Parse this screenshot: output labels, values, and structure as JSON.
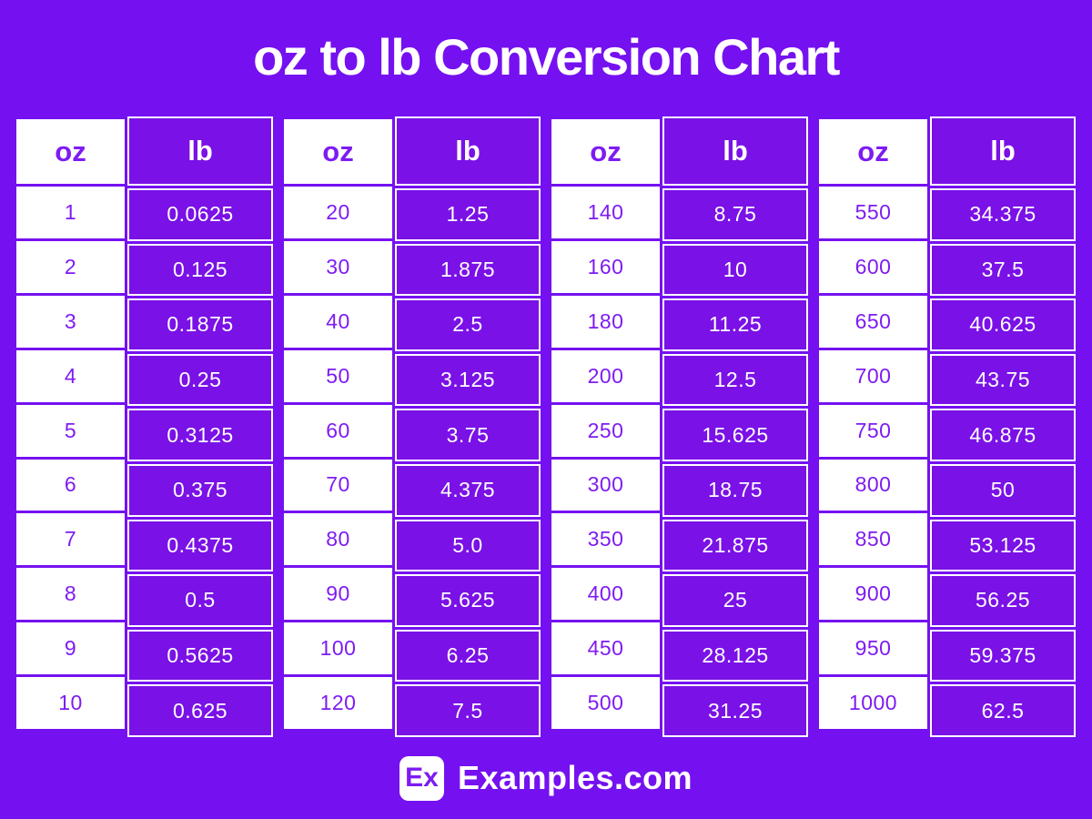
{
  "colors": {
    "background": "#7511F0",
    "cell_purple": "#7A11E6",
    "accent_text": "#7E1BF2",
    "white": "#FFFFFF"
  },
  "chart_data": {
    "type": "table",
    "title": "oz to lb Conversion Chart",
    "columns": [
      "oz",
      "lb"
    ],
    "groups": [
      {
        "rows": [
          [
            "1",
            "0.0625"
          ],
          [
            "2",
            "0.125"
          ],
          [
            "3",
            "0.1875"
          ],
          [
            "4",
            "0.25"
          ],
          [
            "5",
            "0.3125"
          ],
          [
            "6",
            "0.375"
          ],
          [
            "7",
            "0.4375"
          ],
          [
            "8",
            "0.5"
          ],
          [
            "9",
            "0.5625"
          ],
          [
            "10",
            "0.625"
          ]
        ]
      },
      {
        "rows": [
          [
            "20",
            "1.25"
          ],
          [
            "30",
            "1.875"
          ],
          [
            "40",
            "2.5"
          ],
          [
            "50",
            "3.125"
          ],
          [
            "60",
            "3.75"
          ],
          [
            "70",
            "4.375"
          ],
          [
            "80",
            "5.0"
          ],
          [
            "90",
            "5.625"
          ],
          [
            "100",
            "6.25"
          ],
          [
            "120",
            "7.5"
          ]
        ]
      },
      {
        "rows": [
          [
            "140",
            "8.75"
          ],
          [
            "160",
            "10"
          ],
          [
            "180",
            "11.25"
          ],
          [
            "200",
            "12.5"
          ],
          [
            "250",
            "15.625"
          ],
          [
            "300",
            "18.75"
          ],
          [
            "350",
            "21.875"
          ],
          [
            "400",
            "25"
          ],
          [
            "450",
            "28.125"
          ],
          [
            "500",
            "31.25"
          ]
        ]
      },
      {
        "rows": [
          [
            "550",
            "34.375"
          ],
          [
            "600",
            "37.5"
          ],
          [
            "650",
            "40.625"
          ],
          [
            "700",
            "43.75"
          ],
          [
            "750",
            "46.875"
          ],
          [
            "800",
            "50"
          ],
          [
            "850",
            "53.125"
          ],
          [
            "900",
            "56.25"
          ],
          [
            "950",
            "59.375"
          ],
          [
            "1000",
            "62.5"
          ]
        ]
      }
    ]
  },
  "footer": {
    "logo": "Ex",
    "brand": "Examples.com"
  }
}
